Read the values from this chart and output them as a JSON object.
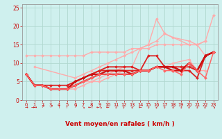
{
  "xlabel": "Vent moyen/en rafales ( km/h )",
  "bg_color": "#cff0ee",
  "grid_color": "#b0d8d0",
  "xlim": [
    -0.5,
    23.5
  ],
  "ylim": [
    0,
    26
  ],
  "xticks": [
    0,
    1,
    2,
    3,
    4,
    5,
    6,
    7,
    8,
    9,
    10,
    11,
    12,
    13,
    14,
    15,
    16,
    17,
    18,
    19,
    20,
    21,
    22,
    23
  ],
  "yticks": [
    0,
    5,
    10,
    15,
    20,
    25
  ],
  "lines": [
    {
      "x": [
        0,
        1,
        2,
        3,
        4,
        5,
        6,
        7,
        8,
        9,
        10,
        11,
        12,
        13,
        14,
        15,
        16,
        17,
        18,
        19,
        20,
        21,
        22,
        23
      ],
      "y": [
        12,
        12,
        12,
        12,
        12,
        12,
        12,
        12,
        13,
        13,
        13,
        13,
        13,
        14,
        14,
        14,
        15,
        15,
        15,
        15,
        15,
        15,
        16,
        23
      ],
      "color": "#ffaaaa",
      "lw": 1.0,
      "marker": "D",
      "ms": 2.0
    },
    {
      "x": [
        1,
        6,
        7,
        8,
        9,
        10,
        11,
        12,
        13,
        14,
        15,
        16,
        17,
        20,
        21,
        22
      ],
      "y": [
        9,
        6,
        7,
        8,
        9,
        10,
        11,
        12,
        13,
        14,
        15,
        16,
        18,
        15,
        15,
        16
      ],
      "color": "#ffaaaa",
      "lw": 1.0,
      "marker": "D",
      "ms": 2.0
    },
    {
      "x": [
        3,
        4,
        5,
        6,
        7,
        8,
        9,
        10,
        11,
        12,
        13,
        14,
        15,
        16,
        17,
        18,
        20,
        21,
        22
      ],
      "y": [
        3,
        3,
        3,
        4,
        5,
        5,
        6,
        7,
        8,
        9,
        9,
        14,
        15,
        22,
        18,
        17,
        16,
        15,
        12
      ],
      "color": "#ffaaaa",
      "lw": 1.0,
      "marker": "D",
      "ms": 2.0
    },
    {
      "x": [
        3,
        4,
        5,
        6,
        7,
        8,
        9,
        10,
        11,
        12,
        13,
        14,
        15,
        16,
        17,
        18,
        20,
        21,
        22
      ],
      "y": [
        3,
        3,
        3,
        3,
        4,
        5,
        5,
        6,
        7,
        8,
        8,
        8,
        8,
        9,
        9,
        10,
        11,
        8,
        8
      ],
      "color": "#ffaaaa",
      "lw": 1.0,
      "marker": "D",
      "ms": 2.0
    },
    {
      "x": [
        0,
        1,
        2,
        3,
        4,
        5,
        6,
        7,
        8,
        9,
        10,
        11,
        12,
        13,
        14,
        15,
        16,
        17,
        18,
        19,
        20,
        21,
        22,
        23
      ],
      "y": [
        7,
        4,
        4,
        4,
        4,
        4,
        5,
        6,
        7,
        8,
        9,
        9,
        9,
        9,
        8,
        12,
        12,
        9,
        9,
        9,
        9,
        8,
        12,
        13
      ],
      "color": "#dd2222",
      "lw": 1.3,
      "marker": "D",
      "ms": 2.0
    },
    {
      "x": [
        0,
        1,
        2,
        3,
        4,
        5,
        6,
        7,
        8,
        9,
        10,
        11,
        12,
        13,
        14,
        15,
        16,
        17,
        18,
        19,
        20,
        21,
        22,
        23
      ],
      "y": [
        7,
        4,
        4,
        3,
        3,
        3,
        5,
        6,
        7,
        8,
        8,
        8,
        8,
        8,
        8,
        8,
        9,
        9,
        9,
        8,
        8,
        6,
        12,
        13
      ],
      "color": "#dd2222",
      "lw": 1.3,
      "marker": "D",
      "ms": 2.0
    },
    {
      "x": [
        0,
        1,
        2,
        3,
        4,
        5,
        6,
        7,
        8,
        9,
        10,
        11,
        12,
        13,
        14,
        15,
        16,
        17,
        18,
        19,
        20,
        21,
        22,
        23
      ],
      "y": [
        7,
        4,
        4,
        3,
        3,
        3,
        5,
        6,
        7,
        7,
        8,
        8,
        8,
        7,
        8,
        8,
        9,
        9,
        9,
        8,
        10,
        8,
        12,
        13
      ],
      "color": "#cc1111",
      "lw": 1.6,
      "marker": "D",
      "ms": 2.0
    },
    {
      "x": [
        0,
        1,
        2,
        3,
        4,
        5,
        6,
        7,
        8,
        9,
        10,
        11,
        12,
        13,
        14,
        15,
        16,
        17,
        18,
        19,
        20,
        21,
        22,
        23
      ],
      "y": [
        7,
        4,
        4,
        3,
        3,
        3,
        4,
        5,
        6,
        7,
        7,
        7,
        7,
        7,
        8,
        8,
        9,
        9,
        8,
        8,
        10,
        8,
        12,
        13
      ],
      "color": "#cc1111",
      "lw": 1.6,
      "marker": "D",
      "ms": 2.0
    },
    {
      "x": [
        0,
        1,
        2,
        3,
        4,
        5,
        6,
        7,
        8,
        9,
        10,
        11,
        12,
        13,
        14,
        15,
        16,
        17,
        18,
        19,
        20,
        21,
        22,
        23
      ],
      "y": [
        7,
        4,
        4,
        3,
        3,
        3,
        4,
        5,
        6,
        7,
        7,
        7,
        7,
        7,
        8,
        8,
        9,
        8,
        8,
        7,
        10,
        8,
        6,
        13
      ],
      "color": "#ff6666",
      "lw": 1.1,
      "marker": "D",
      "ms": 2.0
    }
  ],
  "wind_symbols": [
    "→",
    "→→",
    "↗",
    "↗",
    "↑",
    "↑",
    "↗",
    "↘",
    "←↑",
    "←↘",
    "←",
    "↓",
    "↓",
    "↙",
    "←",
    "↓",
    "↙",
    "↓",
    "↙",
    "↓",
    "↙",
    "↓",
    "↙",
    "↘"
  ]
}
